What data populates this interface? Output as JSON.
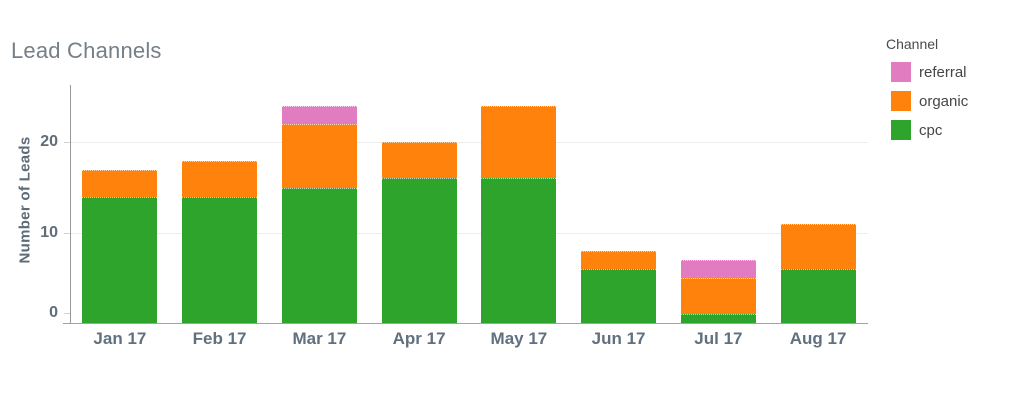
{
  "title": "Lead Channels",
  "chart_data": {
    "type": "bar",
    "stacked": true,
    "title": "Lead Channels",
    "xlabel": "",
    "ylabel": "Number of  Leads",
    "categories": [
      "Jan 17",
      "Feb 17",
      "Mar 17",
      "Apr 17",
      "May 17",
      "Jun 17",
      "Jul 17",
      "Aug 17"
    ],
    "series": [
      {
        "name": "cpc",
        "color": "#2fa42d",
        "values": [
          14,
          14,
          15,
          16,
          16,
          6,
          1,
          6
        ]
      },
      {
        "name": "organic",
        "color": "#ff820d",
        "values": [
          3,
          4,
          7,
          4,
          8,
          2,
          4,
          5
        ]
      },
      {
        "name": "referral",
        "color": "#e17cc0",
        "values": [
          0,
          0,
          2,
          0,
          0,
          0,
          2,
          0
        ]
      }
    ],
    "totals": [
      17,
      18,
      24,
      20,
      24,
      8,
      7,
      11
    ],
    "ylim": [
      0,
      26
    ],
    "yticks": [
      0,
      10,
      20
    ],
    "grid": "horizontal",
    "legend_position": "top-right"
  },
  "legend": {
    "title": "Channel",
    "items": [
      {
        "label": "referral",
        "color": "#e17cc0"
      },
      {
        "label": "organic",
        "color": "#ff820d"
      },
      {
        "label": "cpc",
        "color": "#2fa42d"
      }
    ]
  }
}
